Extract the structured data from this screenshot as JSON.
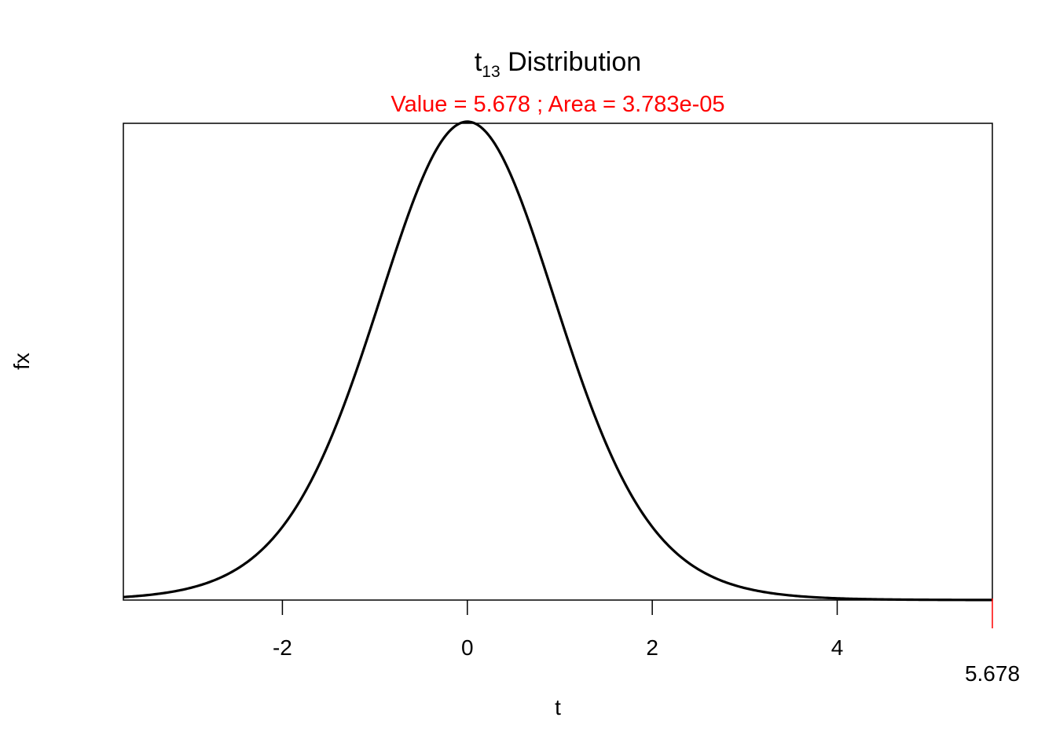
{
  "chart_data": {
    "type": "line",
    "title": {
      "prefix": "t",
      "subscript": "13",
      "suffix": " Distribution"
    },
    "subtitle": "Value = 5.678 ; Area = 3.783e-05",
    "xlabel": "t",
    "ylabel": "fx",
    "distribution": "t",
    "degrees_of_freedom": 13,
    "xlim": [
      -3.72,
      5.678
    ],
    "ylim": [
      0,
      0.39
    ],
    "x_ticks": [
      -2,
      0,
      2,
      4
    ],
    "x_tick_labels": [
      "-2",
      "0",
      "2",
      "4"
    ],
    "y_axis_ticks": "none",
    "grid": false,
    "series": [
      {
        "x": [
          -3.7,
          -3.5,
          -3.0,
          -2.5,
          -2.0,
          -1.5,
          -1.0,
          -0.5,
          0,
          0.5,
          1.0,
          1.5,
          2.0,
          2.5,
          3.0,
          3.5,
          4.0,
          4.5,
          5.0,
          5.678
        ],
        "y": [
          0.0018,
          0.0027,
          0.0072,
          0.0189,
          0.0555,
          0.1259,
          0.2331,
          0.3427,
          0.39,
          0.3427,
          0.2331,
          0.1259,
          0.0555,
          0.0189,
          0.0072,
          0.0027,
          0.0011,
          0.0004,
          0.0002,
          0.0001
        ]
      }
    ],
    "critical_value": 5.678,
    "critical_value_label": "5.678",
    "tail_area": 3.783e-05,
    "colors": {
      "curve": "#000000",
      "annotation": "#ff0000",
      "axes": "#000000"
    }
  }
}
